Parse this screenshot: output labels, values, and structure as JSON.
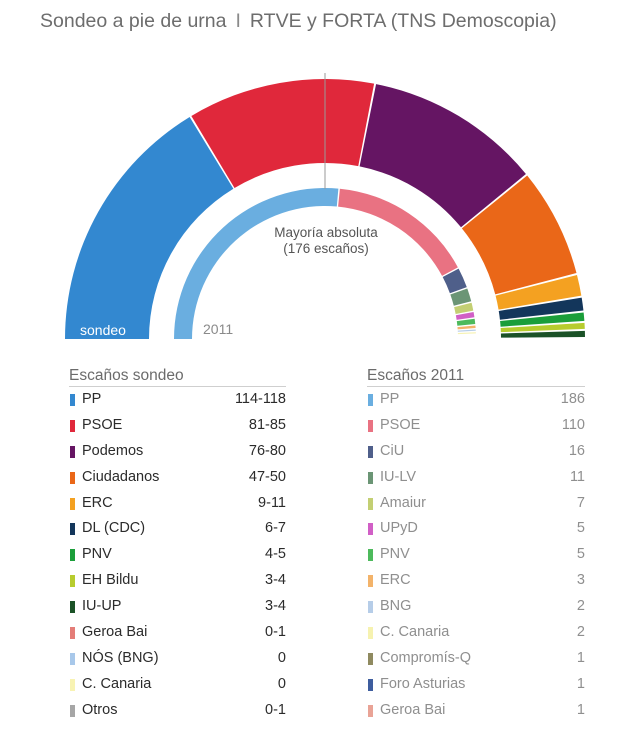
{
  "header": {
    "title_left": "Sondeo a pie de urna",
    "separator": "I",
    "title_right": "RTVE y FORTA (TNS Demoscopia)"
  },
  "chart_data": [
    {
      "type": "pie",
      "variant": "half-donut (hemicycle)",
      "label": "sondeo",
      "series": [
        {
          "name": "PP",
          "value": 116,
          "color": "#3388d0"
        },
        {
          "name": "PSOE",
          "value": 83,
          "color": "#e0283b"
        },
        {
          "name": "Podemos",
          "value": 78,
          "color": "#651563"
        },
        {
          "name": "Ciudadanos",
          "value": 48.5,
          "color": "#ea6718"
        },
        {
          "name": "ERC",
          "value": 10,
          "color": "#f4a121"
        },
        {
          "name": "DL (CDC)",
          "value": 6.5,
          "color": "#13365b"
        },
        {
          "name": "PNV",
          "value": 4.5,
          "color": "#1b9e3a"
        },
        {
          "name": "EH Bildu",
          "value": 3.5,
          "color": "#b7cc2e"
        },
        {
          "name": "IU-UP",
          "value": 3.5,
          "color": "#1b5227"
        }
      ],
      "majority_marker": {
        "label": "Mayoría absoluta",
        "sublabel": "(176 escaños)",
        "value": 176,
        "total": 350
      }
    },
    {
      "type": "pie",
      "variant": "half-donut (hemicycle)",
      "label": "2011",
      "series": [
        {
          "name": "PP",
          "value": 186,
          "color": "#6aaee0"
        },
        {
          "name": "PSOE",
          "value": 110,
          "color": "#e97282"
        },
        {
          "name": "CiU",
          "value": 16,
          "color": "#4f5f8a"
        },
        {
          "name": "IU-LV",
          "value": 11,
          "color": "#6b9575"
        },
        {
          "name": "Amaiur",
          "value": 7,
          "color": "#c3cf73"
        },
        {
          "name": "UPyD",
          "value": 5,
          "color": "#d15fc6"
        },
        {
          "name": "PNV",
          "value": 5,
          "color": "#4dba5c"
        },
        {
          "name": "ERC",
          "value": 3,
          "color": "#f3b36a"
        },
        {
          "name": "BNG",
          "value": 2,
          "color": "#b6cde8"
        },
        {
          "name": "C. Canaria",
          "value": 2,
          "color": "#f6f2b0"
        },
        {
          "name": "Compromís-Q",
          "value": 1,
          "color": "#8f8a60"
        },
        {
          "name": "Foro Asturias",
          "value": 1,
          "color": "#3e5d9e"
        },
        {
          "name": "Geroa Bai",
          "value": 1,
          "color": "#e9a396"
        }
      ]
    }
  ],
  "tables": {
    "sondeo": {
      "heading": "Escaños sondeo",
      "rows": [
        {
          "name": "PP",
          "value": "114-118",
          "color": "#3388d0"
        },
        {
          "name": "PSOE",
          "value": "81-85",
          "color": "#e0283b"
        },
        {
          "name": "Podemos",
          "value": "76-80",
          "color": "#651563"
        },
        {
          "name": "Ciudadanos",
          "value": "47-50",
          "color": "#ea6718"
        },
        {
          "name": "ERC",
          "value": "9-11",
          "color": "#f4a121"
        },
        {
          "name": "DL (CDC)",
          "value": "6-7",
          "color": "#13365b"
        },
        {
          "name": "PNV",
          "value": "4-5",
          "color": "#1b9e3a"
        },
        {
          "name": "EH Bildu",
          "value": "3-4",
          "color": "#b7cc2e"
        },
        {
          "name": "IU-UP",
          "value": "3-4",
          "color": "#1b5227"
        },
        {
          "name": "Geroa Bai",
          "value": "0-1",
          "color": "#e47d78"
        },
        {
          "name": "NÓS (BNG)",
          "value": "0",
          "color": "#a8c8ea"
        },
        {
          "name": "C. Canaria",
          "value": "0",
          "color": "#f8f3b3"
        },
        {
          "name": "Otros",
          "value": "0-1",
          "color": "#a6a6a6"
        }
      ]
    },
    "y2011": {
      "heading": "Escaños 2011",
      "rows": [
        {
          "name": "PP",
          "value": "186",
          "color": "#6aaee0"
        },
        {
          "name": "PSOE",
          "value": "110",
          "color": "#e97282"
        },
        {
          "name": "CiU",
          "value": "16",
          "color": "#4f5f8a"
        },
        {
          "name": "IU-LV",
          "value": "11",
          "color": "#6b9575"
        },
        {
          "name": "Amaiur",
          "value": "7",
          "color": "#c3cf73"
        },
        {
          "name": "UPyD",
          "value": "5",
          "color": "#d15fc6"
        },
        {
          "name": "PNV",
          "value": "5",
          "color": "#4dba5c"
        },
        {
          "name": "ERC",
          "value": "3",
          "color": "#f3b36a"
        },
        {
          "name": "BNG",
          "value": "2",
          "color": "#b6cde8"
        },
        {
          "name": "C. Canaria",
          "value": "2",
          "color": "#f6f2b0"
        },
        {
          "name": "Compromís-Q",
          "value": "1",
          "color": "#8f8a60"
        },
        {
          "name": "Foro Asturias",
          "value": "1",
          "color": "#3e5d9e"
        },
        {
          "name": "Geroa Bai",
          "value": "1",
          "color": "#e9a396"
        }
      ]
    }
  }
}
